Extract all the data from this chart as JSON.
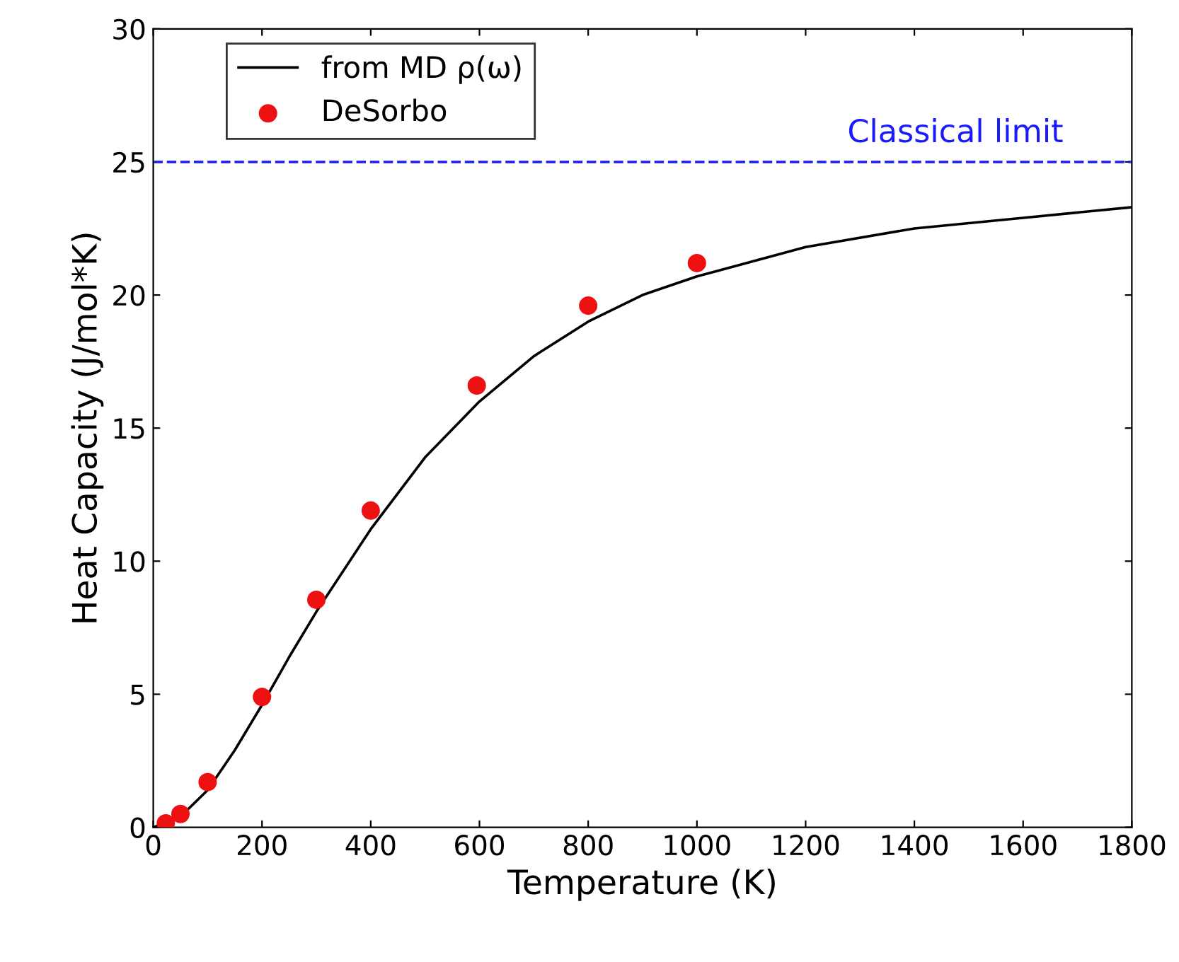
{
  "chart_data": {
    "type": "line",
    "xlabel": "Temperature (K)",
    "ylabel": "Heat Capacity (J/mol*K)",
    "xlim": [
      0,
      1800
    ],
    "ylim": [
      0,
      30
    ],
    "xticks": [
      0,
      200,
      400,
      600,
      800,
      1000,
      1200,
      1400,
      1600,
      1800
    ],
    "yticks": [
      0,
      5,
      10,
      15,
      20,
      25,
      30
    ],
    "grid": false,
    "legend": "top left",
    "series": [
      {
        "name": "from MD ρ(ω)",
        "color": "#000000",
        "line_style": "solid",
        "marker": "none",
        "x": [
          0,
          50,
          100,
          150,
          200,
          250,
          300,
          400,
          500,
          600,
          700,
          800,
          900,
          1000,
          1200,
          1400,
          1600,
          1800
        ],
        "values": [
          0,
          0.4,
          1.4,
          2.9,
          4.6,
          6.4,
          8.1,
          11.2,
          13.9,
          16.0,
          17.7,
          19.0,
          20.0,
          20.7,
          21.8,
          22.5,
          22.9,
          23.3
        ]
      },
      {
        "name": "DeSorbo",
        "type": "scatter",
        "color": "#ee1111",
        "marker": "circle",
        "x": [
          23,
          50,
          100,
          200,
          300,
          400,
          595,
          800,
          1000
        ],
        "values": [
          0.15,
          0.5,
          1.7,
          4.9,
          8.55,
          11.9,
          16.6,
          19.6,
          21.2
        ]
      }
    ],
    "ref_lines": [
      {
        "axis": "y",
        "value": 25,
        "label": "Classical limit",
        "color": "#1a1aff",
        "line_style": "dashed"
      }
    ]
  }
}
